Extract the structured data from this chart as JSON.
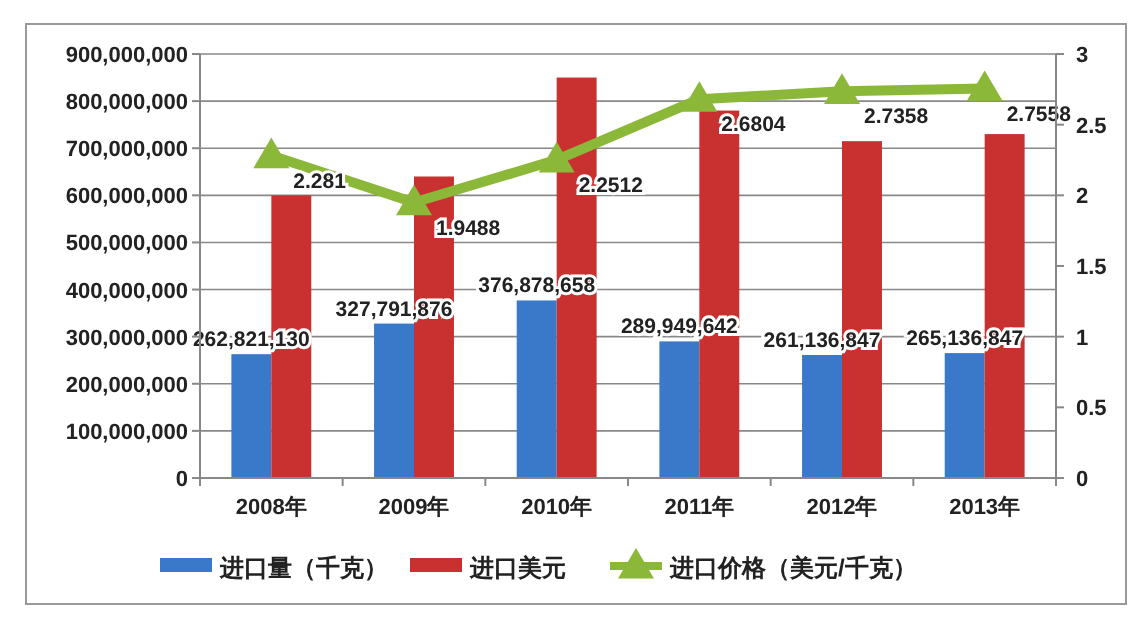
{
  "chart_data": {
    "type": "bar",
    "categories": [
      "2008年",
      "2009年",
      "2010年",
      "2011年",
      "2012年",
      "2013年"
    ],
    "series": [
      {
        "name": "进口量（千克）",
        "color": "#3a78c9",
        "values": [
          262821130,
          327791876,
          376878658,
          289949642,
          261136847,
          265136847
        ],
        "value_labels": [
          "262,821,130",
          "327,791,876",
          "376,878,658",
          "289,949,642",
          "261,136,847",
          "265,136,847"
        ]
      },
      {
        "name": "进口美元",
        "color": "#c93030",
        "values": [
          600000000,
          640000000,
          850000000,
          780000000,
          715000000,
          730000000
        ]
      },
      {
        "name": "进口价格（美元/千克）",
        "type": "line",
        "axis": "y2",
        "color": "#8cb83a",
        "marker": "triangle",
        "values": [
          2.281,
          1.9488,
          2.2512,
          2.6804,
          2.7358,
          2.7558
        ],
        "value_labels": [
          "2.281",
          "1.9488",
          "2.2512",
          "2.6804",
          "2.7358",
          "2.7558"
        ]
      }
    ],
    "ylim": [
      0,
      900000000
    ],
    "yticks": [
      {
        "value": 0,
        "label": "0"
      },
      {
        "value": 100000000,
        "label": "100,000,000"
      },
      {
        "value": 200000000,
        "label": "200,000,000"
      },
      {
        "value": 300000000,
        "label": "300,000,000"
      },
      {
        "value": 400000000,
        "label": "400,000,000"
      },
      {
        "value": 500000000,
        "label": "500,000,000"
      },
      {
        "value": 600000000,
        "label": "600,000,000"
      },
      {
        "value": 700000000,
        "label": "700,000,000"
      },
      {
        "value": 800000000,
        "label": "800,000,000"
      },
      {
        "value": 900000000,
        "label": "900,000,000"
      }
    ],
    "y2lim": [
      0,
      3
    ],
    "y2ticks": [
      0,
      0.5,
      1,
      1.5,
      2,
      2.5,
      3
    ],
    "grid": "y",
    "legend": "bottom"
  }
}
